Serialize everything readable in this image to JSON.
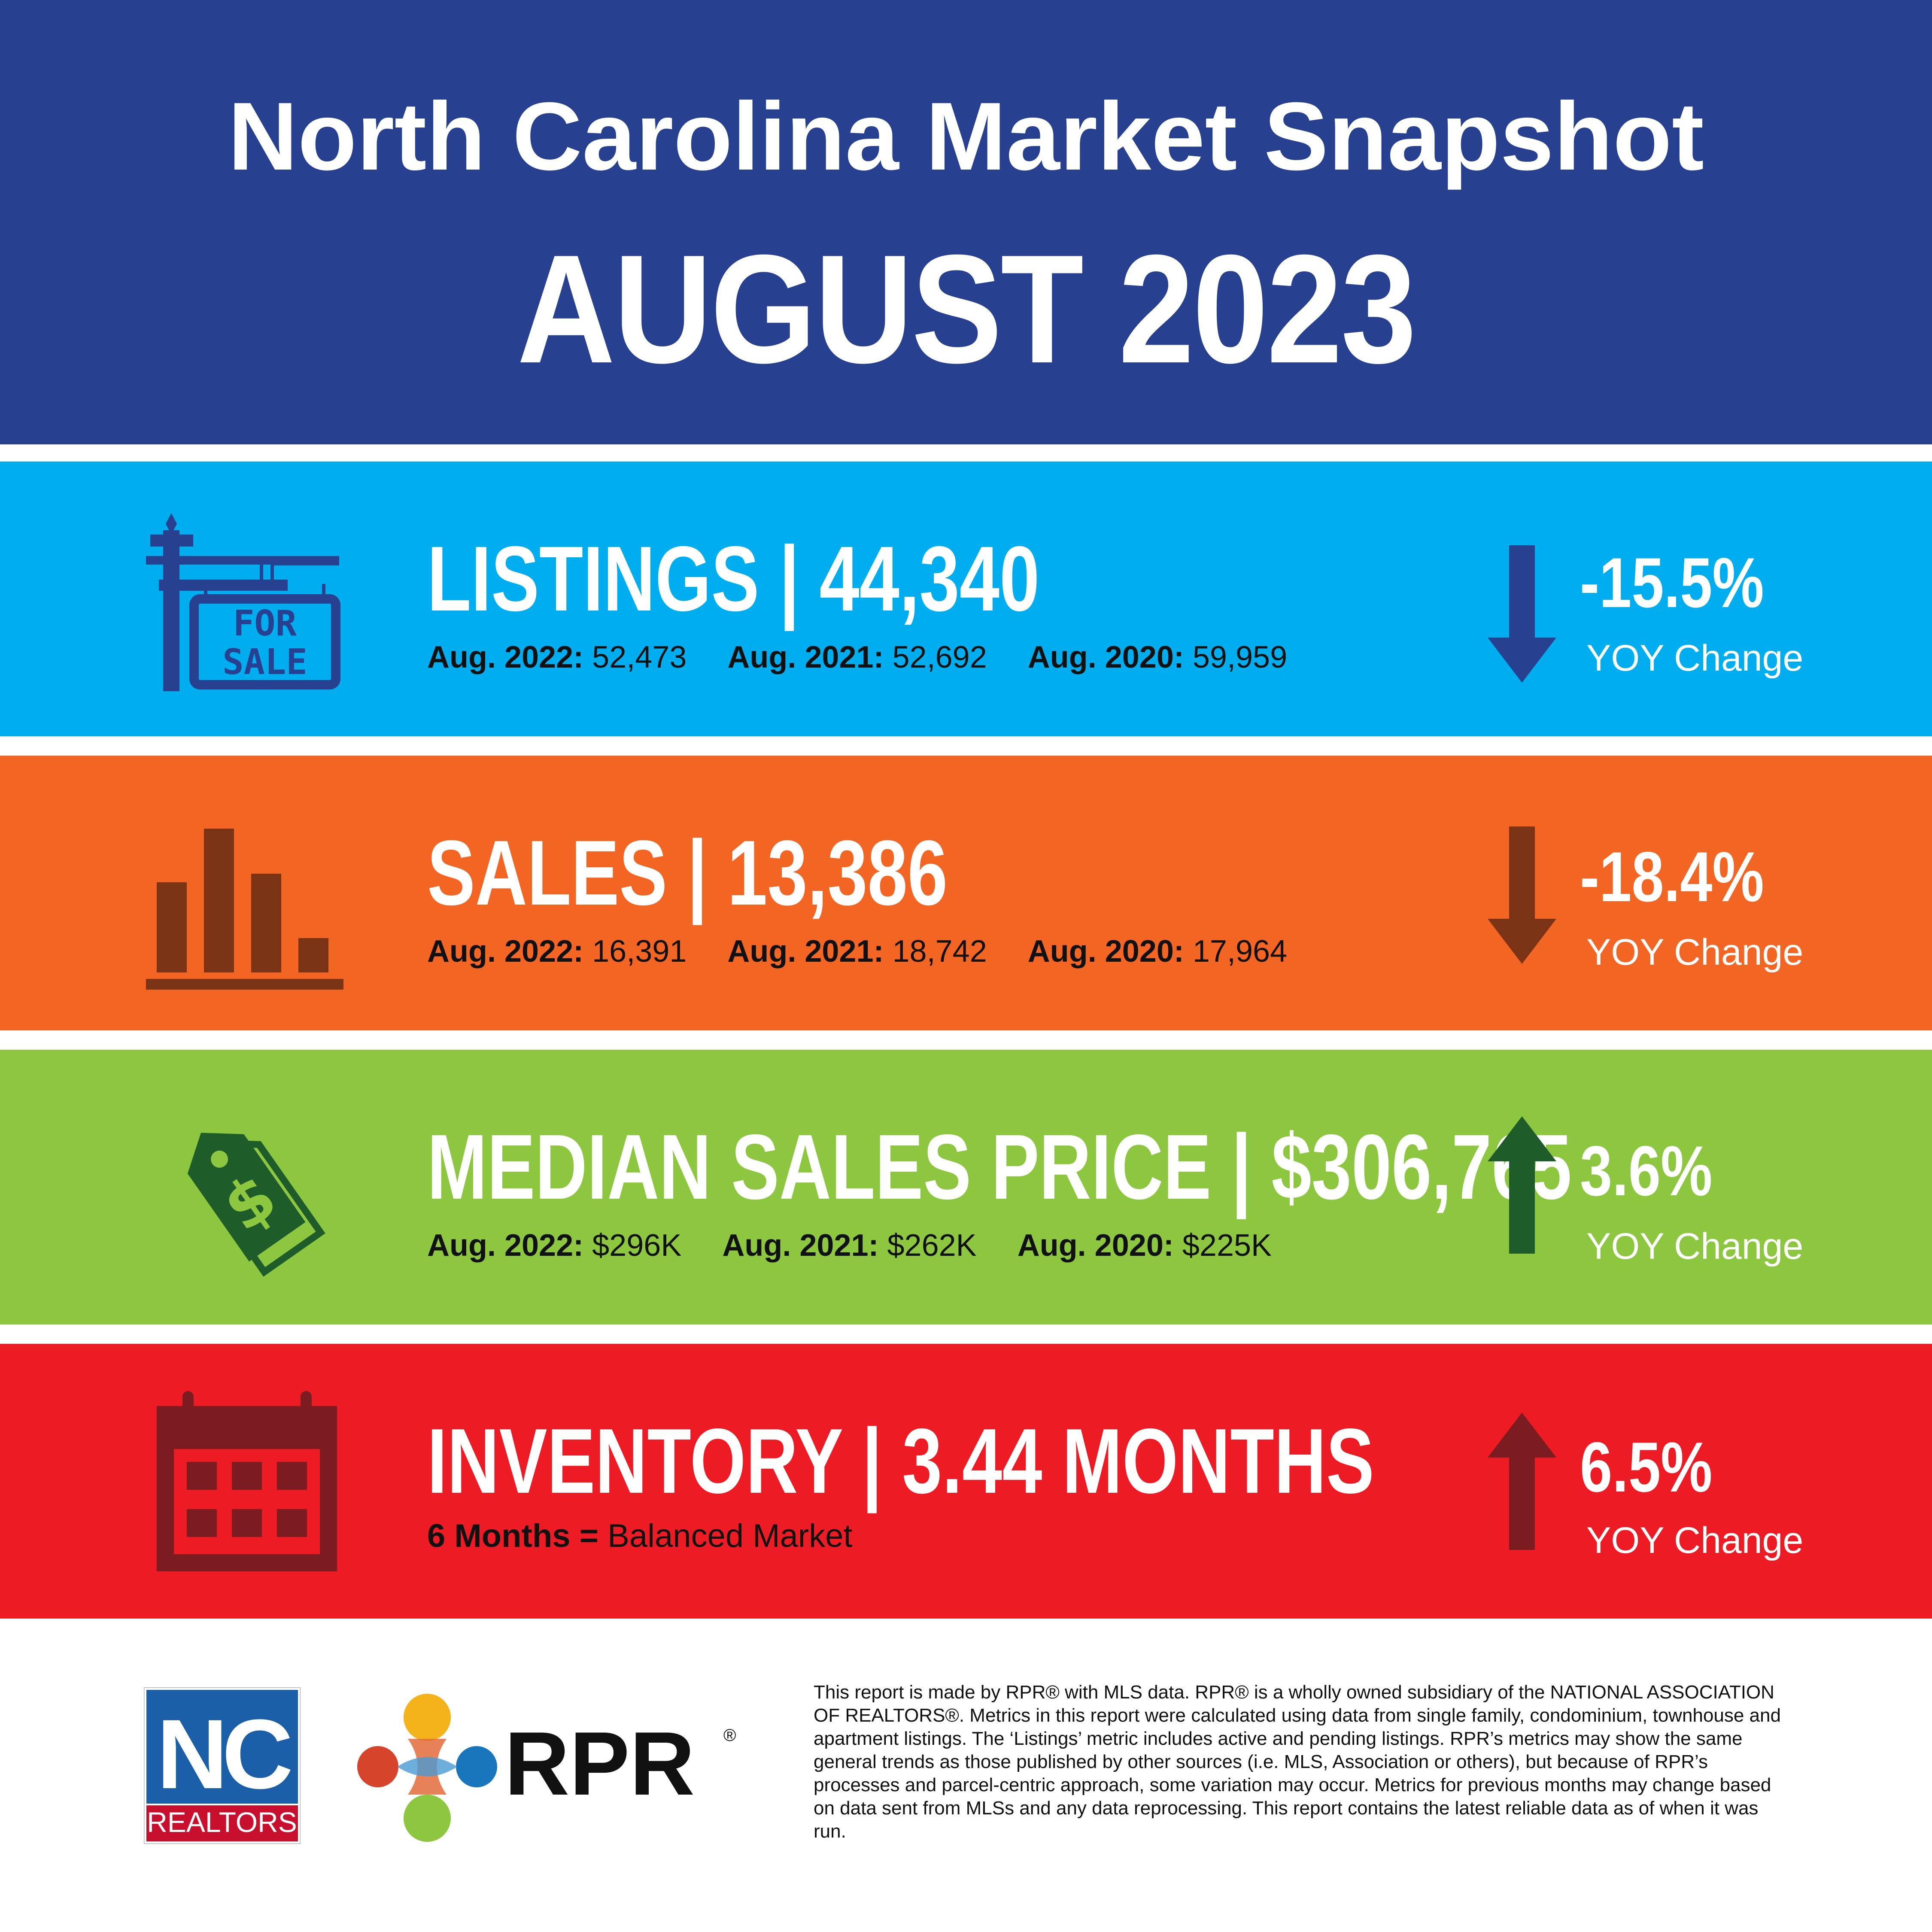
{
  "colors": {
    "header_bg": "#27408F",
    "listings_bg": "#00AEEF",
    "listings_dark": "#27408F",
    "sales_bg": "#F26522",
    "sales_dark": "#7B3316",
    "price_bg": "#8DC63F",
    "price_dark": "#1E5C2A",
    "inventory_bg": "#ED1C24",
    "inventory_dark": "#7A1C20"
  },
  "header": {
    "title": "North Carolina Market Snapshot",
    "month": "AUGUST 2023"
  },
  "listings": {
    "icon": "for-sale-sign-icon",
    "sign_line1": "FOR",
    "sign_line2": "SALE",
    "metric": "LISTINGS | 44,340",
    "history": [
      {
        "label": "Aug. 2022:",
        "value": "52,473"
      },
      {
        "label": "Aug. 2021:",
        "value": "52,692"
      },
      {
        "label": "Aug. 2020:",
        "value": "59,959"
      }
    ],
    "direction": "down",
    "change": "-15.5%",
    "change_label": "YOY Change"
  },
  "sales": {
    "icon": "bar-chart-icon",
    "metric": "SALES | 13,386",
    "history": [
      {
        "label": "Aug. 2022:",
        "value": "16,391"
      },
      {
        "label": "Aug. 2021:",
        "value": "18,742"
      },
      {
        "label": "Aug. 2020:",
        "value": "17,964"
      }
    ],
    "direction": "down",
    "change": "-18.4%",
    "change_label": "YOY Change"
  },
  "price": {
    "icon": "price-tag-icon",
    "metric": "MEDIAN SALES PRICE | $306,765",
    "history": [
      {
        "label": "Aug. 2022:",
        "value": "$296K"
      },
      {
        "label": "Aug. 2021:",
        "value": "$262K"
      },
      {
        "label": "Aug. 2020:",
        "value": "$225K"
      }
    ],
    "direction": "up",
    "change": "3.6%",
    "change_label": "YOY Change"
  },
  "inventory": {
    "icon": "calendar-icon",
    "metric": "INVENTORY | 3.44 MONTHS",
    "note_bold": "6 Months =",
    "note_text": "Balanced Market",
    "direction": "up",
    "change": "6.5%",
    "change_label": "YOY Change"
  },
  "footer": {
    "nc_logo_top": "NC",
    "nc_logo_bottom": "REALTORS",
    "rpr_logo_text": "RPR",
    "disclaimer": "This report is made by RPR® with MLS data. RPR® is a wholly owned subsidiary of the NATIONAL ASSOCIATION OF REALTORS®. Metrics in this report were calculated using data from single family, condominium, townhouse and apartment listings. The ‘Listings’ metric includes active and pending listings. RPR’s metrics may show the same general trends as those published by other sources (i.e. MLS, Association or others), but because of RPR’s processes and parcel-centric approach, some variation may occur. Metrics for previous months may change based on data sent from MLSs and any data reprocessing. This report contains the latest reliable data as of when it was run."
  }
}
